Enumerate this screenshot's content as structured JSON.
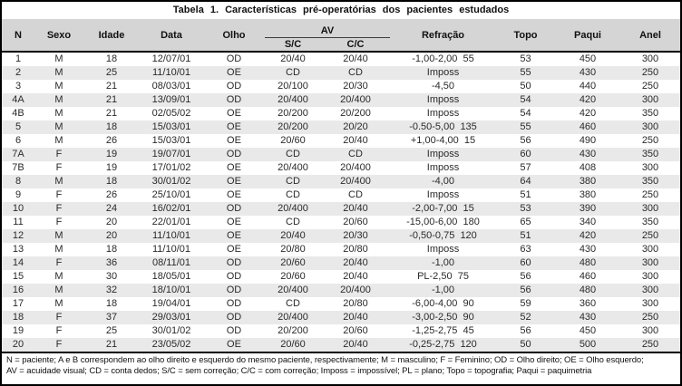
{
  "title": "Tabela 1. Características pré-operatórias dos pacientes estudados",
  "table": {
    "headers": [
      "N",
      "Sexo",
      "Idade",
      "Data",
      "Olho",
      "Refração",
      "Topo",
      "Paqui",
      "Anel"
    ],
    "av_group_label": "AV",
    "av_sub": [
      "S/C",
      "C/C"
    ],
    "rows": [
      [
        "1",
        "M",
        "18",
        "12/07/01",
        "OD",
        "20/40",
        "20/40",
        "-1,00-2,00  55",
        "53",
        "450",
        "300"
      ],
      [
        "2",
        "M",
        "25",
        "11/10/01",
        "OE",
        "CD",
        "CD",
        "Imposs",
        "55",
        "430",
        "250"
      ],
      [
        "3",
        "M",
        "21",
        "08/03/01",
        "OD",
        "20/100",
        "20/30",
        "-4,50",
        "50",
        "440",
        "250"
      ],
      [
        "4A",
        "M",
        "21",
        "13/09/01",
        "OD",
        "20/400",
        "20/400",
        "Imposs",
        "54",
        "420",
        "300"
      ],
      [
        "4B",
        "M",
        "21",
        "02/05/02",
        "OE",
        "20/200",
        "20/200",
        "Imposs",
        "54",
        "420",
        "350"
      ],
      [
        "5",
        "M",
        "18",
        "15/03/01",
        "OE",
        "20/200",
        "20/20",
        "-0.50-5,00  135",
        "55",
        "460",
        "300"
      ],
      [
        "6",
        "M",
        "26",
        "15/03/01",
        "OE",
        "20/60",
        "20/40",
        "+1,00-4,00  15",
        "56",
        "490",
        "250"
      ],
      [
        "7A",
        "F",
        "19",
        "19/07/01",
        "OD",
        "CD",
        "CD",
        "Imposs",
        "60",
        "430",
        "350"
      ],
      [
        "7B",
        "F",
        "19",
        "17/01/02",
        "OE",
        "20/400",
        "20/400",
        "Imposs",
        "57",
        "408",
        "300"
      ],
      [
        "8",
        "M",
        "18",
        "30/01/02",
        "OE",
        "CD",
        "20/400",
        "-4,00",
        "64",
        "380",
        "350"
      ],
      [
        "9",
        "F",
        "26",
        "25/10/01",
        "OE",
        "CD",
        "CD",
        "Imposs",
        "51",
        "380",
        "250"
      ],
      [
        "10",
        "F",
        "24",
        "16/02/01",
        "OD",
        "20/400",
        "20/40",
        "-2,00-7,00  15",
        "53",
        "390",
        "300"
      ],
      [
        "11",
        "F",
        "20",
        "22/01/01",
        "OE",
        "CD",
        "20/60",
        "-15,00-6,00  180",
        "65",
        "340",
        "350"
      ],
      [
        "12",
        "M",
        "20",
        "11/10/01",
        "OE",
        "20/40",
        "20/30",
        "-0,50-0,75  120",
        "51",
        "420",
        "250"
      ],
      [
        "13",
        "M",
        "18",
        "11/10/01",
        "OE",
        "20/80",
        "20/80",
        "Imposs",
        "63",
        "430",
        "300"
      ],
      [
        "14",
        "F",
        "36",
        "08/11/01",
        "OD",
        "20/60",
        "20/40",
        "-1,00",
        "60",
        "480",
        "300"
      ],
      [
        "15",
        "M",
        "30",
        "18/05/01",
        "OD",
        "20/60",
        "20/40",
        "PL-2,50  75",
        "56",
        "460",
        "300"
      ],
      [
        "16",
        "M",
        "32",
        "18/10/01",
        "OD",
        "20/400",
        "20/400",
        "-1,00",
        "56",
        "480",
        "300"
      ],
      [
        "17",
        "M",
        "18",
        "19/04/01",
        "OD",
        "CD",
        "20/80",
        "-6,00-4,00  90",
        "59",
        "360",
        "300"
      ],
      [
        "18",
        "F",
        "37",
        "29/03/01",
        "OD",
        "20/400",
        "20/40",
        "-3,00-2,50  90",
        "52",
        "430",
        "250"
      ],
      [
        "19",
        "F",
        "25",
        "30/01/02",
        "OD",
        "20/200",
        "20/60",
        "-1,25-2,75  45",
        "56",
        "450",
        "300"
      ],
      [
        "20",
        "F",
        "21",
        "23/05/02",
        "OE",
        "20/60",
        "20/40",
        "-0,25-2,75  120",
        "50",
        "500",
        "250"
      ]
    ]
  },
  "footnotes": [
    "N = paciente; A e B correspondem ao olho direito e esquerdo do mesmo paciente, respectivamente; M = masculino; F = Feminino; OD = Olho direito; OE = Olho esquerdo;",
    "AV = acuidade visual; CD = conta dedos; S/C = sem correção; C/C = com correção; Imposs = impossível; PL = plano; Topo = topografia; Paqui = paquimetria"
  ],
  "colors": {
    "header_bg": "#d5d5d5",
    "stripe_bg": "#e9e9e9",
    "border": "#000000"
  }
}
